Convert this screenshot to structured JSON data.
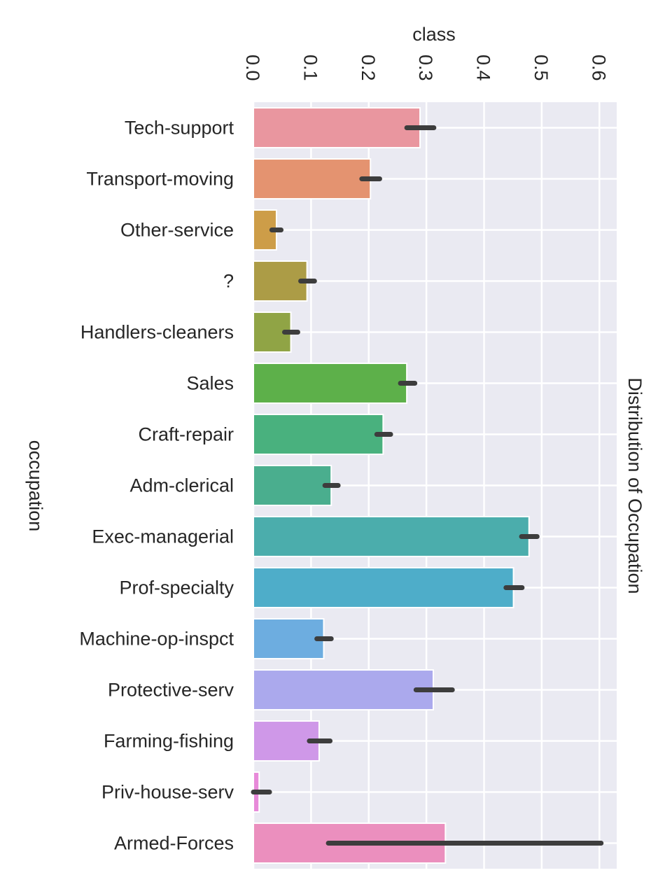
{
  "chart_data": {
    "type": "bar",
    "orientation": "horizontal",
    "title": "Distribution of Occupation",
    "xlabel": "class",
    "ylabel": "occupation",
    "xlim": [
      0,
      0.63
    ],
    "xticks": [
      0.0,
      0.1,
      0.2,
      0.3,
      0.4,
      0.5,
      0.6
    ],
    "xtick_labels": [
      "0.0",
      "0.1",
      "0.2",
      "0.3",
      "0.4",
      "0.5",
      "0.6"
    ],
    "grid": true,
    "categories": [
      "Tech-support",
      "Transport-moving",
      "Other-service",
      "?",
      "Handlers-cleaners",
      "Sales",
      "Craft-repair",
      "Adm-clerical",
      "Exec-managerial",
      "Prof-specialty",
      "Machine-op-inspct",
      "Protective-serv",
      "Farming-fishing",
      "Priv-house-serv",
      "Armed-Forces"
    ],
    "values": [
      0.289,
      0.203,
      0.04,
      0.093,
      0.065,
      0.266,
      0.225,
      0.135,
      0.478,
      0.451,
      0.122,
      0.312,
      0.114,
      0.01,
      0.333
    ],
    "ci_low": [
      0.266,
      0.188,
      0.032,
      0.082,
      0.054,
      0.255,
      0.214,
      0.124,
      0.465,
      0.438,
      0.11,
      0.282,
      0.097,
      0.0,
      0.13
    ],
    "ci_high": [
      0.313,
      0.219,
      0.048,
      0.106,
      0.077,
      0.28,
      0.238,
      0.147,
      0.492,
      0.466,
      0.135,
      0.345,
      0.133,
      0.028,
      0.603
    ],
    "colors": [
      "#e9969f",
      "#e49370",
      "#cd9d48",
      "#ac9c46",
      "#90a445",
      "#5db04a",
      "#49b17e",
      "#4aae8e",
      "#4badac",
      "#4eadc9",
      "#6dade0",
      "#aba9ed",
      "#cf98e8",
      "#e78ad9",
      "#eb8fbe"
    ]
  }
}
